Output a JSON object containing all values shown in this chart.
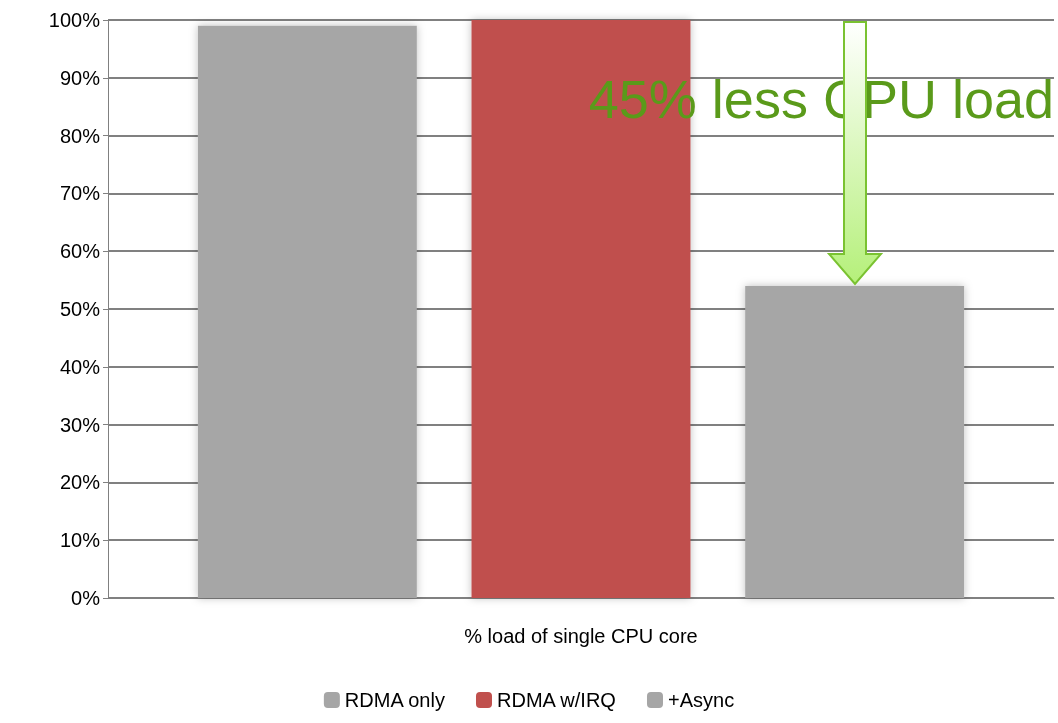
{
  "chart_data": {
    "type": "bar",
    "categories": [
      "% load of single CPU core"
    ],
    "series": [
      {
        "name": "RDMA only",
        "color": "#a6a6a6",
        "values": [
          99
        ]
      },
      {
        "name": "RDMA w/IRQ",
        "color": "#c0504d",
        "values": [
          100
        ]
      },
      {
        "name": "+Async",
        "color": "#a6a6a6",
        "values": [
          54
        ]
      }
    ],
    "ylim": [
      0,
      100
    ],
    "yticks": [
      {
        "value": 0,
        "label": "0%"
      },
      {
        "value": 10,
        "label": "10%"
      },
      {
        "value": 20,
        "label": "20%"
      },
      {
        "value": 30,
        "label": "30%"
      },
      {
        "value": 40,
        "label": "40%"
      },
      {
        "value": 50,
        "label": "50%"
      },
      {
        "value": 60,
        "label": "60%"
      },
      {
        "value": 70,
        "label": "70%"
      },
      {
        "value": 80,
        "label": "80%"
      },
      {
        "value": 90,
        "label": "90%"
      },
      {
        "value": 100,
        "label": "100%"
      }
    ],
    "grid": "y",
    "legend": "bottom",
    "annotations": [
      "45% less CPU load"
    ]
  }
}
